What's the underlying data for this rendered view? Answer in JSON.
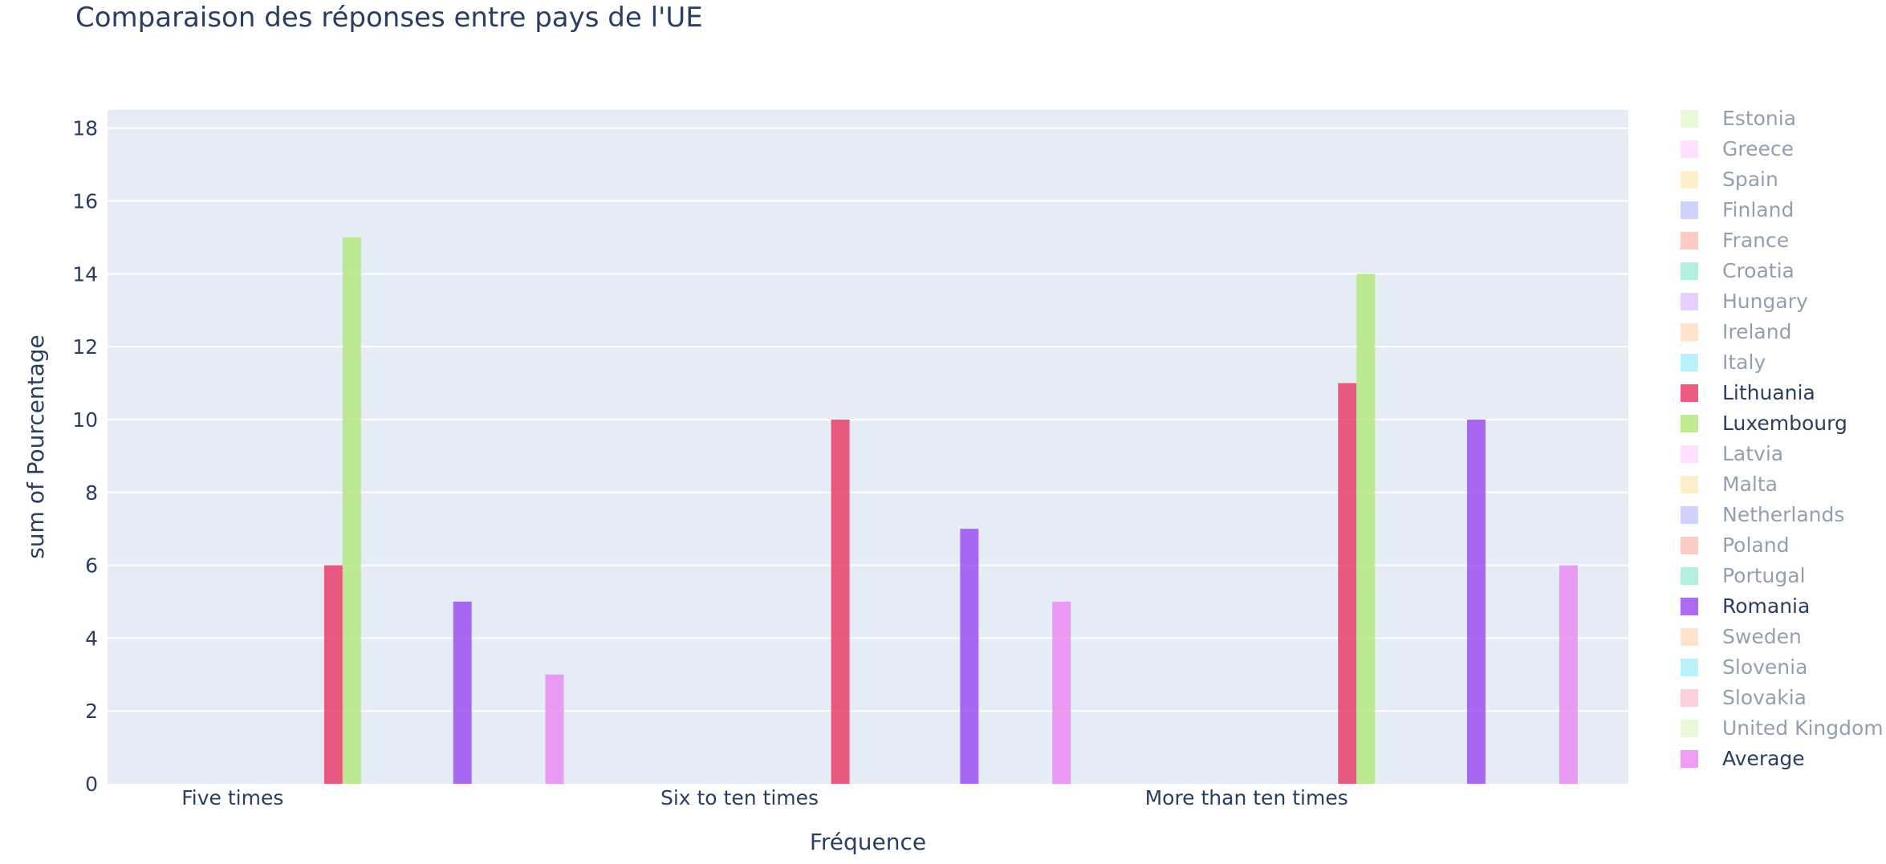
{
  "chart_data": {
    "type": "bar",
    "title": "Comparaison des réponses entre pays de l'UE",
    "xlabel": "Fréquence",
    "ylabel": "sum of Pourcentage",
    "categories": [
      "Five times",
      "Six to ten times",
      "More than ten times"
    ],
    "ylim": [
      0,
      18.5
    ],
    "yticks": [
      0,
      2,
      4,
      6,
      8,
      10,
      12,
      14,
      16,
      18
    ],
    "grid": true,
    "legend_position": "right",
    "plot_background": "#E5ECF6",
    "series": [
      {
        "name": "Estonia",
        "color": "#B6E880",
        "visible": false,
        "values": [
          null,
          null,
          null
        ]
      },
      {
        "name": "Greece",
        "color": "#FF97FF",
        "visible": false,
        "values": [
          null,
          null,
          null
        ]
      },
      {
        "name": "Spain",
        "color": "#FECB52",
        "visible": false,
        "values": [
          null,
          null,
          null
        ]
      },
      {
        "name": "Finland",
        "color": "#636EFA",
        "visible": false,
        "values": [
          null,
          null,
          null
        ]
      },
      {
        "name": "France",
        "color": "#EF553B",
        "visible": false,
        "values": [
          null,
          null,
          null
        ]
      },
      {
        "name": "Croatia",
        "color": "#00CC96",
        "visible": false,
        "values": [
          null,
          null,
          null
        ]
      },
      {
        "name": "Hungary",
        "color": "#AB63FA",
        "visible": false,
        "values": [
          null,
          null,
          null
        ]
      },
      {
        "name": "Ireland",
        "color": "#FFA15A",
        "visible": false,
        "values": [
          null,
          null,
          null
        ]
      },
      {
        "name": "Italy",
        "color": "#19D3F3",
        "visible": false,
        "values": [
          null,
          null,
          null
        ]
      },
      {
        "name": "Lithuania",
        "color": "#E8406A",
        "visible": true,
        "values": [
          6,
          10,
          11
        ]
      },
      {
        "name": "Luxembourg",
        "color": "#B6E880",
        "visible": true,
        "values": [
          15,
          null,
          14
        ]
      },
      {
        "name": "Latvia",
        "color": "#FF97FF",
        "visible": false,
        "values": [
          null,
          null,
          null
        ]
      },
      {
        "name": "Malta",
        "color": "#FECB52",
        "visible": false,
        "values": [
          null,
          null,
          null
        ]
      },
      {
        "name": "Netherlands",
        "color": "#636EFA",
        "visible": false,
        "values": [
          null,
          null,
          null
        ]
      },
      {
        "name": "Poland",
        "color": "#EF553B",
        "visible": false,
        "values": [
          null,
          null,
          null
        ]
      },
      {
        "name": "Portugal",
        "color": "#00CC96",
        "visible": false,
        "values": [
          null,
          null,
          null
        ]
      },
      {
        "name": "Romania",
        "color": "#9B51F0",
        "visible": true,
        "values": [
          5,
          7,
          10
        ]
      },
      {
        "name": "Sweden",
        "color": "#FFA15A",
        "visible": false,
        "values": [
          null,
          null,
          null
        ]
      },
      {
        "name": "Slovenia",
        "color": "#19D3F3",
        "visible": false,
        "values": [
          null,
          null,
          null
        ]
      },
      {
        "name": "Slovakia",
        "color": "#F0648C",
        "visible": false,
        "values": [
          null,
          null,
          null
        ]
      },
      {
        "name": "United Kingdom",
        "color": "#B6E880",
        "visible": false,
        "values": [
          null,
          null,
          null
        ]
      },
      {
        "name": "Average",
        "color": "#EC8CF2",
        "visible": true,
        "values": [
          3,
          5,
          6
        ]
      }
    ]
  }
}
